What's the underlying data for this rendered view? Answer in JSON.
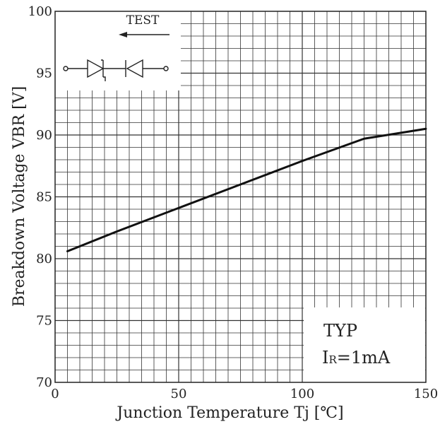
{
  "chart_data": {
    "type": "line",
    "title": "",
    "xlabel": "Junction Temperature Tj [℃]",
    "ylabel": "Breakdown Voltage VBR [V]",
    "xlim": [
      0,
      150
    ],
    "ylim": [
      70,
      100
    ],
    "x_ticks": [
      0,
      50,
      100,
      150
    ],
    "y_ticks": [
      70,
      75,
      80,
      85,
      90,
      95,
      100
    ],
    "grid": true,
    "series": [
      {
        "x": [
          5,
          25,
          50,
          75,
          100,
          125,
          150
        ],
        "y": [
          80.6,
          82.2,
          84.1,
          86.0,
          87.9,
          89.7,
          90.5
        ]
      }
    ],
    "annotations": {
      "test_label": "TEST",
      "typ_label": "TYP",
      "condition_main": "I",
      "condition_sub": "R",
      "condition_value": "=1mA"
    }
  }
}
